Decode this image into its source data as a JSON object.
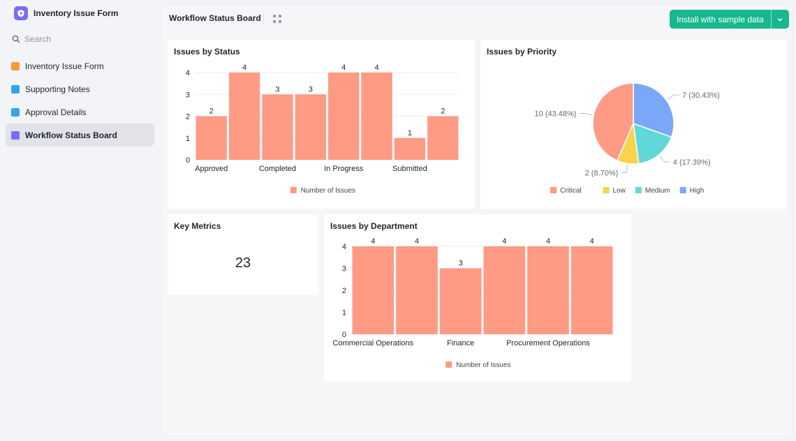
{
  "sidebar": {
    "app_title": "Inventory Issue Form",
    "search_placeholder": "Search",
    "items": [
      {
        "label": "Inventory Issue Form",
        "icon": "chart-icon",
        "color": "#f59a3c"
      },
      {
        "label": "Supporting Notes",
        "icon": "doc-icon",
        "color": "#2ea8e6"
      },
      {
        "label": "Approval Details",
        "icon": "doc-icon",
        "color": "#2ea8e6"
      },
      {
        "label": "Workflow Status Board",
        "icon": "dashboard-icon",
        "color": "#7b6cf6",
        "active": true
      }
    ]
  },
  "header": {
    "title": "Workflow Status Board",
    "install_label": "Install with sample data",
    "accent": "#17b890"
  },
  "cards": {
    "status_title": "Issues by Status",
    "priority_title": "Issues by Priority",
    "metrics_title": "Key Metrics",
    "metric_value": "23",
    "department_title": "Issues by Department"
  },
  "chart_data": [
    {
      "type": "bar",
      "title": "Issues by Status",
      "categories": [
        "Approved",
        "",
        "Completed",
        "",
        "In Progress",
        "",
        "Submitted",
        ""
      ],
      "values": [
        2,
        4,
        3,
        3,
        4,
        4,
        1,
        2
      ],
      "series": [
        {
          "name": "Number of Issues",
          "values": [
            2,
            4,
            3,
            3,
            4,
            4,
            1,
            2
          ]
        }
      ],
      "yticks": [
        0,
        1,
        2,
        3,
        4
      ],
      "ylim": [
        0,
        4
      ],
      "color": "#ff9a85",
      "legend": "bottom"
    },
    {
      "type": "pie",
      "title": "Issues by Priority",
      "slices": [
        {
          "label": "High",
          "value": 7,
          "text": "7 (30.43%)",
          "color": "#7aa7f7"
        },
        {
          "label": "Medium",
          "value": 4,
          "text": "4 (17.39%)",
          "color": "#62d7d7"
        },
        {
          "label": "Low",
          "value": 2,
          "text": "2 (8.70%)",
          "color": "#f9d34a"
        },
        {
          "label": "Critical",
          "value": 10,
          "text": "10 (43.48%)",
          "color": "#ff9a85"
        }
      ],
      "legend_order": [
        "Critical",
        "Low",
        "Medium",
        "High"
      ],
      "legend": "bottom"
    },
    {
      "type": "bar",
      "title": "Issues by Department",
      "categories": [
        "Commercial Operations",
        "",
        "Finance",
        "",
        "Procurement Operations",
        ""
      ],
      "values": [
        4,
        4,
        3,
        4,
        4,
        4
      ],
      "series": [
        {
          "name": "Number of Issues",
          "values": [
            4,
            4,
            3,
            4,
            4,
            4
          ]
        }
      ],
      "yticks": [
        0,
        1,
        2,
        3,
        4
      ],
      "ylim": [
        0,
        4
      ],
      "color": "#ff9a85",
      "legend": "bottom"
    }
  ]
}
